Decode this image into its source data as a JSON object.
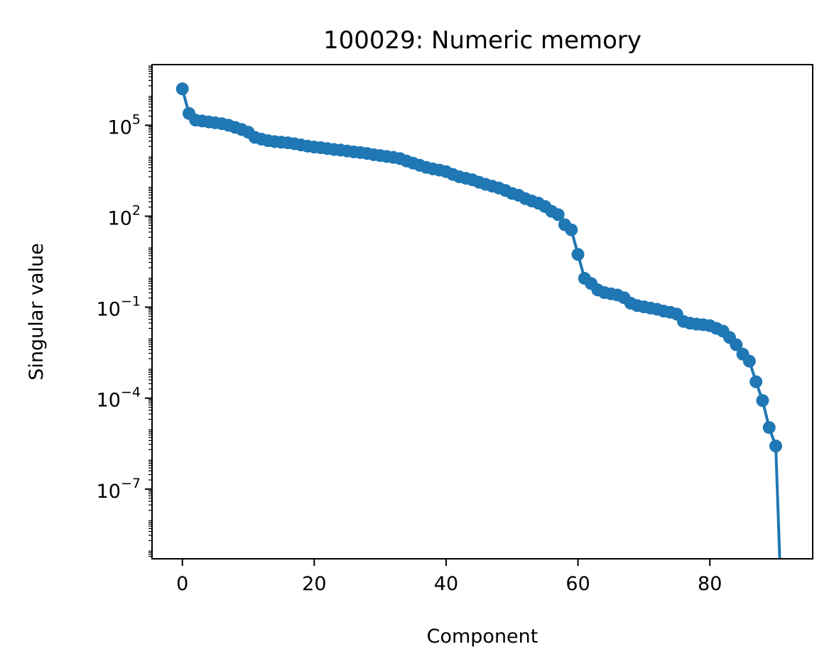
{
  "chart_data": {
    "type": "line",
    "title": "100029: Numeric memory",
    "xlabel": "Component",
    "ylabel": "Singular value",
    "yscale": "log",
    "xlim": [
      -4.6,
      95.6
    ],
    "ylim_log10": [
      -9.3,
      7.0
    ],
    "xticks": [
      {
        "value": 0,
        "label": "0"
      },
      {
        "value": 20,
        "label": "20"
      },
      {
        "value": 40,
        "label": "40"
      },
      {
        "value": 60,
        "label": "60"
      },
      {
        "value": 80,
        "label": "80"
      }
    ],
    "yticks": [
      {
        "log10": 5,
        "base": "10",
        "exponent": "5"
      },
      {
        "log10": 2,
        "base": "10",
        "exponent": "2"
      },
      {
        "log10": -1,
        "base": "10",
        "exponent": "−1"
      },
      {
        "log10": -4,
        "base": "10",
        "exponent": "−4"
      },
      {
        "log10": -7,
        "base": "10",
        "exponent": "−7"
      }
    ],
    "grid": false,
    "legend": "none",
    "marker": "circle",
    "series_color": "#1f77b4",
    "series": [
      {
        "log10_values": [
          6.2,
          5.39,
          5.17,
          5.14,
          5.11,
          5.08,
          5.05,
          5.0,
          4.93,
          4.86,
          4.77,
          4.6,
          4.54,
          4.49,
          4.46,
          4.44,
          4.42,
          4.39,
          4.35,
          4.31,
          4.28,
          4.26,
          4.23,
          4.2,
          4.18,
          4.15,
          4.12,
          4.1,
          4.07,
          4.03,
          4.0,
          3.97,
          3.94,
          3.9,
          3.82,
          3.75,
          3.68,
          3.61,
          3.56,
          3.52,
          3.47,
          3.38,
          3.3,
          3.25,
          3.2,
          3.12,
          3.05,
          2.99,
          2.93,
          2.85,
          2.75,
          2.69,
          2.58,
          2.5,
          2.43,
          2.32,
          2.16,
          2.05,
          1.72,
          1.55,
          0.74,
          -0.05,
          -0.22,
          -0.43,
          -0.52,
          -0.56,
          -0.6,
          -0.69,
          -0.87,
          -0.95,
          -0.99,
          -1.03,
          -1.07,
          -1.13,
          -1.17,
          -1.23,
          -1.47,
          -1.53,
          -1.56,
          -1.58,
          -1.61,
          -1.7,
          -1.79,
          -2.0,
          -2.24,
          -2.55,
          -2.78,
          -3.46,
          -4.08,
          -4.97,
          -5.58,
          -11.76
        ]
      }
    ]
  }
}
